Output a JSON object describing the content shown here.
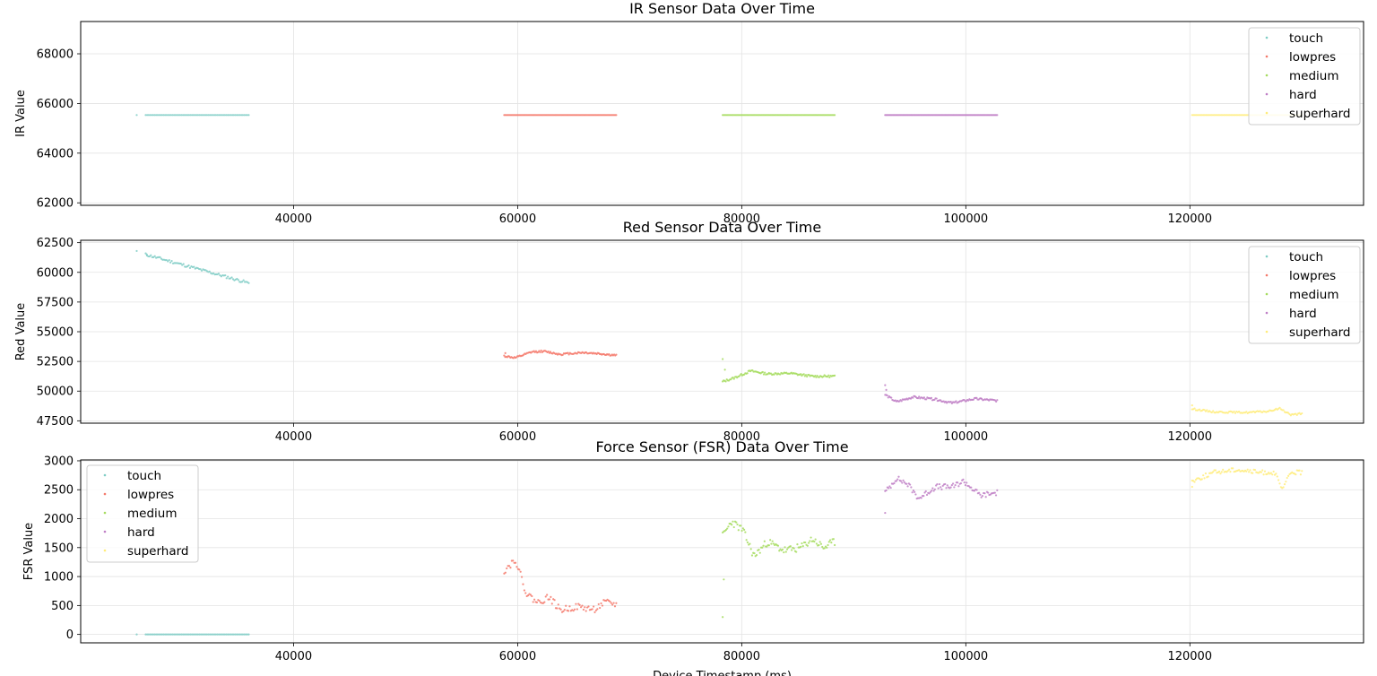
{
  "colors": {
    "touch": "#7fcdc5",
    "lowpres": "#f4796b",
    "medium": "#a6dc5f",
    "hard": "#bf7fc6",
    "superhard": "#ffec7a"
  },
  "chart_data": [
    {
      "type": "scatter",
      "title": "IR Sensor Data Over Time",
      "xlabel": "",
      "ylabel": "IR Value",
      "xlim": [
        21000,
        135500
      ],
      "ylim": [
        61900,
        69300
      ],
      "xticks": [
        40000,
        60000,
        80000,
        100000,
        120000
      ],
      "yticks": [
        62000,
        64000,
        66000,
        68000
      ],
      "grid": true,
      "legend": "top-right",
      "legend_entries": [
        "touch",
        "lowpres",
        "medium",
        "hard",
        "superhard"
      ],
      "series": [
        {
          "name": "touch",
          "segments": [
            [
              26800,
              36000
            ]
          ],
          "outliers": [
            [
              26000,
              65535
            ]
          ],
          "n": 70,
          "base": 65535,
          "trend": 0,
          "wig": [],
          "noise": 0,
          "seed": 1
        },
        {
          "name": "lowpres",
          "segments": [
            [
              58800,
              68800
            ]
          ],
          "outliers": [],
          "n": 100,
          "base": 65535,
          "trend": 0,
          "wig": [],
          "noise": 0,
          "seed": 2
        },
        {
          "name": "medium",
          "segments": [
            [
              78300,
              88300
            ]
          ],
          "outliers": [],
          "n": 100,
          "base": 65535,
          "trend": 0,
          "wig": [],
          "noise": 0,
          "seed": 3
        },
        {
          "name": "hard",
          "segments": [
            [
              92800,
              102800
            ]
          ],
          "outliers": [],
          "n": 110,
          "base": 65535,
          "trend": 0,
          "wig": [],
          "noise": 0,
          "seed": 4
        },
        {
          "name": "superhard",
          "segments": [
            [
              120200,
              130000
            ]
          ],
          "outliers": [],
          "n": 80,
          "base": 65535,
          "trend": 0,
          "wig": [],
          "noise": 0,
          "seed": 5
        }
      ]
    },
    {
      "type": "scatter",
      "title": "Red Sensor Data Over Time",
      "xlabel": "",
      "ylabel": "Red Value",
      "xlim": [
        21000,
        135500
      ],
      "ylim": [
        47300,
        62700
      ],
      "xticks": [
        40000,
        60000,
        80000,
        100000,
        120000
      ],
      "yticks": [
        47500,
        50000,
        52500,
        55000,
        57500,
        60000,
        62500
      ],
      "grid": true,
      "legend": "top-right",
      "legend_entries": [
        "touch",
        "lowpres",
        "medium",
        "hard",
        "superhard"
      ],
      "series": [
        {
          "name": "touch",
          "segments": [
            [
              26800,
              36000
            ]
          ],
          "outliers": [
            [
              26000,
              61800
            ],
            [
              26900,
              61500
            ]
          ],
          "n": 80,
          "base": 61500,
          "trend": -2400,
          "wig": [],
          "noise": 120,
          "seed": 11
        },
        {
          "name": "lowpres",
          "segments": [
            [
              58800,
              68800
            ]
          ],
          "outliers": [
            [
              58900,
              53200
            ]
          ],
          "n": 110,
          "base": 52900,
          "trend": 0,
          "wig": [
            [
              0.0,
              52950
            ],
            [
              0.1,
              52800
            ],
            [
              0.25,
              53300
            ],
            [
              0.35,
              53350
            ],
            [
              0.5,
              53100
            ],
            [
              0.7,
              53250
            ],
            [
              0.85,
              53150
            ],
            [
              1.0,
              53000
            ]
          ],
          "noise": 80,
          "seed": 12
        },
        {
          "name": "medium",
          "segments": [
            [
              78300,
              88300
            ]
          ],
          "outliers": [
            [
              78300,
              52700
            ],
            [
              78500,
              51800
            ]
          ],
          "n": 110,
          "base": 51200,
          "trend": 0,
          "wig": [
            [
              0.0,
              50800
            ],
            [
              0.1,
              51100
            ],
            [
              0.25,
              51700
            ],
            [
              0.4,
              51450
            ],
            [
              0.6,
              51500
            ],
            [
              0.8,
              51250
            ],
            [
              1.0,
              51250
            ]
          ],
          "noise": 90,
          "seed": 13
        },
        {
          "name": "hard",
          "segments": [
            [
              92800,
              102800
            ]
          ],
          "outliers": [
            [
              92800,
              50500
            ],
            [
              92900,
              50100
            ]
          ],
          "n": 110,
          "base": 49300,
          "trend": 0,
          "wig": [
            [
              0.0,
              49700
            ],
            [
              0.1,
              49100
            ],
            [
              0.25,
              49500
            ],
            [
              0.45,
              49300
            ],
            [
              0.6,
              49000
            ],
            [
              0.8,
              49350
            ],
            [
              1.0,
              49200
            ]
          ],
          "noise": 90,
          "seed": 14
        },
        {
          "name": "superhard",
          "segments": [
            [
              120200,
              130000
            ]
          ],
          "outliers": [
            [
              120200,
              48800
            ]
          ],
          "n": 90,
          "base": 48300,
          "trend": 0,
          "wig": [
            [
              0.0,
              48500
            ],
            [
              0.2,
              48250
            ],
            [
              0.5,
              48200
            ],
            [
              0.7,
              48300
            ],
            [
              0.8,
              48550
            ],
            [
              0.9,
              48000
            ],
            [
              1.0,
              48100
            ]
          ],
          "noise": 70,
          "seed": 15
        }
      ]
    },
    {
      "type": "scatter",
      "title": "Force Sensor (FSR) Data Over Time",
      "xlabel": "Device Timestamp (ms)",
      "ylabel": "FSR Value",
      "xlim": [
        21000,
        135500
      ],
      "ylim": [
        -145,
        3015
      ],
      "xticks": [
        40000,
        60000,
        80000,
        100000,
        120000
      ],
      "yticks": [
        0,
        500,
        1000,
        1500,
        2000,
        2500,
        3000
      ],
      "grid": true,
      "legend": "top-left",
      "legend_entries": [
        "touch",
        "lowpres",
        "medium",
        "hard",
        "superhard"
      ],
      "series": [
        {
          "name": "touch",
          "segments": [
            [
              26800,
              36000
            ]
          ],
          "outliers": [
            [
              26000,
              0
            ]
          ],
          "n": 70,
          "base": 0,
          "trend": 0,
          "wig": [],
          "noise": 0,
          "seed": 21
        },
        {
          "name": "lowpres",
          "segments": [
            [
              58800,
              68800
            ]
          ],
          "outliers": [],
          "n": 90,
          "base": 600,
          "trend": 0,
          "wig": [
            [
              0.0,
              1100
            ],
            [
              0.1,
              1300
            ],
            [
              0.2,
              700
            ],
            [
              0.3,
              550
            ],
            [
              0.4,
              650
            ],
            [
              0.5,
              420
            ],
            [
              0.65,
              480
            ],
            [
              0.8,
              430
            ],
            [
              0.9,
              550
            ],
            [
              1.0,
              520
            ]
          ],
          "noise": 60,
          "seed": 22
        },
        {
          "name": "medium",
          "segments": [
            [
              78300,
              88300
            ]
          ],
          "outliers": [
            [
              78300,
              300
            ],
            [
              78400,
              950
            ]
          ],
          "n": 100,
          "base": 1500,
          "trend": 0,
          "wig": [
            [
              0.0,
              1700
            ],
            [
              0.08,
              1950
            ],
            [
              0.18,
              1800
            ],
            [
              0.28,
              1350
            ],
            [
              0.4,
              1600
            ],
            [
              0.55,
              1450
            ],
            [
              0.7,
              1500
            ],
            [
              0.8,
              1650
            ],
            [
              0.9,
              1500
            ],
            [
              1.0,
              1600
            ]
          ],
          "noise": 70,
          "seed": 23
        },
        {
          "name": "hard",
          "segments": [
            [
              92800,
              102800
            ]
          ],
          "outliers": [
            [
              92800,
              2100
            ]
          ],
          "n": 100,
          "base": 2500,
          "trend": 0,
          "wig": [
            [
              0.0,
              2450
            ],
            [
              0.1,
              2700
            ],
            [
              0.2,
              2600
            ],
            [
              0.3,
              2350
            ],
            [
              0.45,
              2550
            ],
            [
              0.6,
              2550
            ],
            [
              0.7,
              2650
            ],
            [
              0.85,
              2400
            ],
            [
              1.0,
              2450
            ]
          ],
          "noise": 50,
          "seed": 24
        },
        {
          "name": "superhard",
          "segments": [
            [
              120200,
              130000
            ]
          ],
          "outliers": [
            [
              120200,
              2550
            ]
          ],
          "n": 90,
          "base": 2800,
          "trend": 0,
          "wig": [
            [
              0.0,
              2650
            ],
            [
              0.2,
              2800
            ],
            [
              0.4,
              2850
            ],
            [
              0.6,
              2800
            ],
            [
              0.75,
              2800
            ],
            [
              0.82,
              2500
            ],
            [
              0.9,
              2800
            ],
            [
              1.0,
              2800
            ]
          ],
          "noise": 40,
          "seed": 25
        }
      ]
    }
  ]
}
